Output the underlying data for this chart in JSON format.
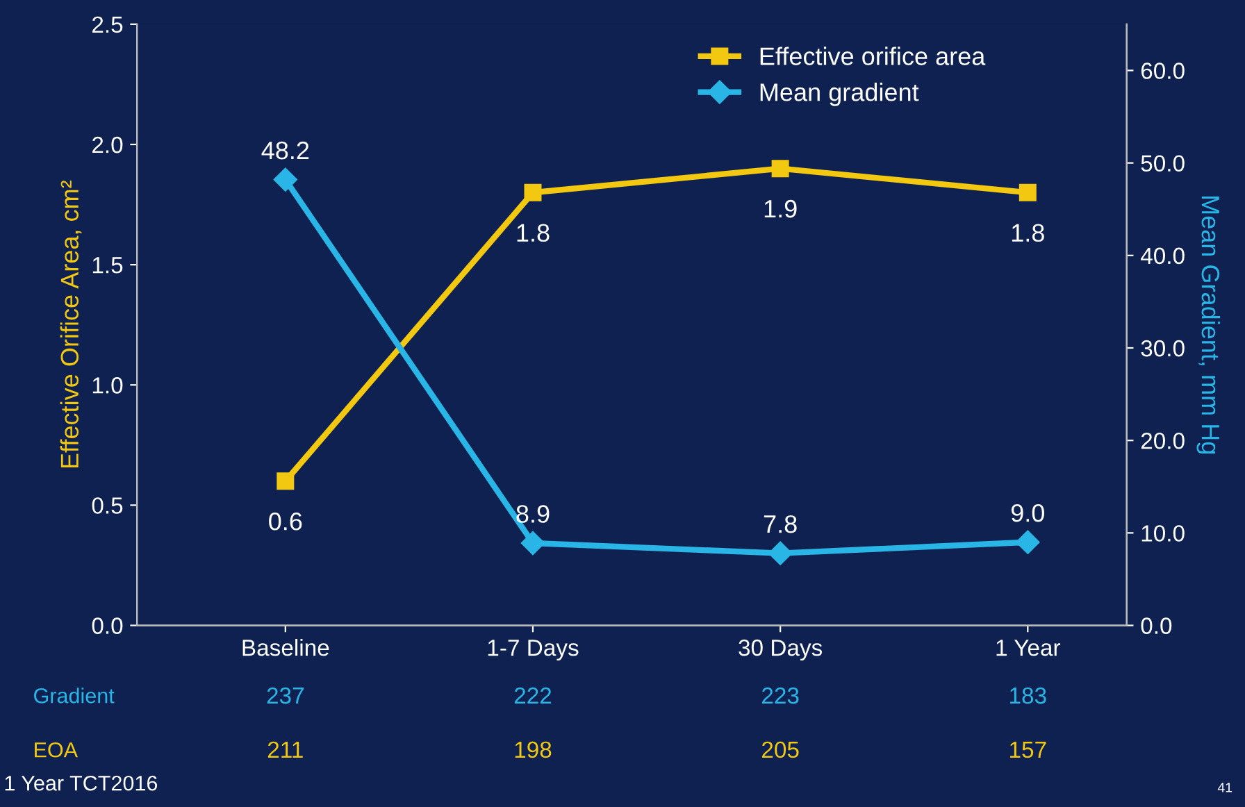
{
  "chart_data": {
    "type": "line",
    "categories": [
      "Baseline",
      "1-7 Days",
      "30 Days",
      "1 Year"
    ],
    "ylabel": "Effective Orifice Area, cm²",
    "y2label": "Mean Gradient, mm Hg",
    "series": [
      {
        "name": "Effective orifice area",
        "color": "#f2c811",
        "values": [
          0.6,
          1.8,
          1.9,
          1.8
        ],
        "marker": "square",
        "value_labels": [
          "0.6",
          "1.8",
          "1.9",
          "1.8"
        ]
      },
      {
        "name": "Mean gradient",
        "color": "#29b6e6",
        "values": [
          48.2,
          8.9,
          7.8,
          9.0
        ],
        "axis": "y2",
        "marker": "diamond",
        "value_labels": [
          "48.2",
          "8.9",
          "7.8",
          "9.0"
        ]
      }
    ],
    "ylim": [
      0,
      2.5
    ],
    "yticks": [
      {
        "value": 0,
        "label": "0.0"
      },
      {
        "value": 0.5,
        "label": "0.5"
      },
      {
        "value": 1,
        "label": "1.0"
      },
      {
        "value": 1.5,
        "label": "1.5"
      },
      {
        "value": 2,
        "label": "2.0"
      },
      {
        "value": 2.5,
        "label": "2.5"
      }
    ],
    "y2lim": [
      0,
      65
    ],
    "y2ticks": [
      {
        "value": 0,
        "label": "0.0"
      },
      {
        "value": 10,
        "label": "10.0"
      },
      {
        "value": 20,
        "label": "20.0"
      },
      {
        "value": 30,
        "label": "30.0"
      },
      {
        "value": 40,
        "label": "40.0"
      },
      {
        "value": 50,
        "label": "50.0"
      },
      {
        "value": 60,
        "label": "60.0"
      }
    ],
    "grid": false,
    "legend": "top right",
    "annotations": [
      "Gradient",
      "237",
      "222",
      "223",
      "183",
      "EOA",
      "211",
      "198",
      "205",
      "157",
      "1 Year TCT2016",
      "41"
    ]
  }
}
